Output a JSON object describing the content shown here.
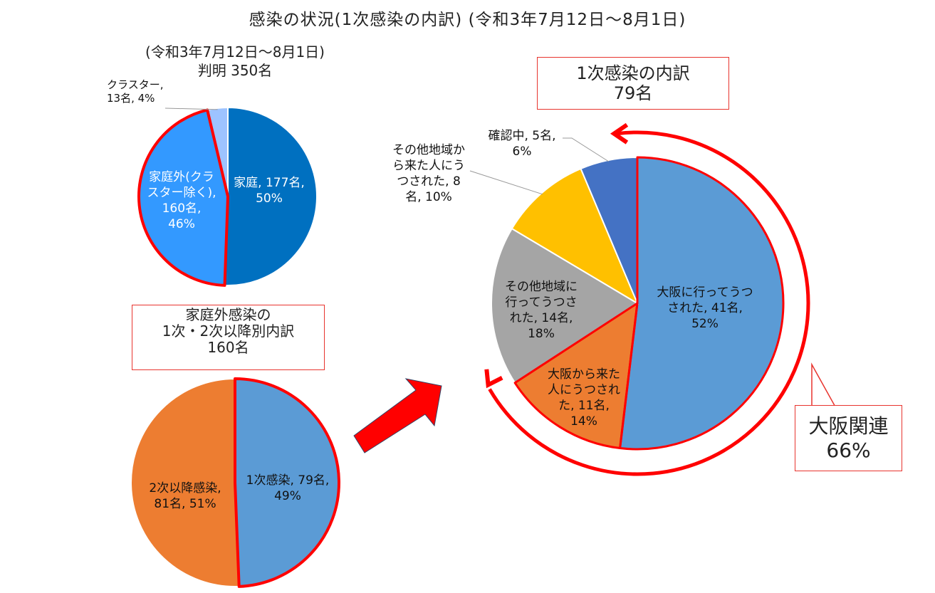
{
  "title": "感染の状況(1次感染の内訳) (令和3年7月12日～8月1日)",
  "chart_data": [
    {
      "type": "pie",
      "subtitle_line1": "(令和3年7月12日～8月1日)",
      "subtitle_line2": "判明 350名",
      "slices": [
        {
          "name": "家庭",
          "value": 177,
          "percent": 50,
          "color": "#0070c0",
          "label": "家庭, 177名,\n50%"
        },
        {
          "name": "家庭外(クラスター除く)",
          "value": 160,
          "percent": 46,
          "color": "#3399ff",
          "label": "家庭外(クラ\nスター除く),\n160名,\n46%"
        },
        {
          "name": "クラスター",
          "value": 13,
          "percent": 4,
          "color": "#9dc3ff",
          "label": "クラスター,\n13名, 4%"
        }
      ],
      "highlighted": "家庭外(クラスター除く)"
    },
    {
      "type": "pie",
      "box_line1": "家庭外感染の",
      "box_line2": "1次・2次以降別内訳",
      "box_line3": "160名",
      "slices": [
        {
          "name": "1次感染",
          "value": 79,
          "percent": 49,
          "color": "#5b9bd5",
          "label": "1次感染, 79名,\n49%"
        },
        {
          "name": "2次以降感染",
          "value": 81,
          "percent": 51,
          "color": "#ed7d31",
          "label": "2次以降感染,\n81名, 51%"
        }
      ],
      "highlighted": "1次感染"
    },
    {
      "type": "pie",
      "box_line1": "1次感染の内訳",
      "box_line2": "79名",
      "slices": [
        {
          "name": "大阪に行ってうつされた",
          "value": 41,
          "percent": 52,
          "color": "#5b9bd5",
          "label": "大阪に行ってうつ\nされた, 41名,\n52%"
        },
        {
          "name": "大阪から来た人にうつされた",
          "value": 11,
          "percent": 14,
          "color": "#ed7d31",
          "label": "大阪から来た\n人にうつされ\nた, 11名,\n14%"
        },
        {
          "name": "その他地域に行ってうつされた",
          "value": 14,
          "percent": 18,
          "color": "#a5a5a5",
          "label": "その他地域に\n行ってうつさ\nれた, 14名,\n18%"
        },
        {
          "name": "その他地域から来た人にうつされた",
          "value": 8,
          "percent": 10,
          "color": "#ffc000",
          "label": "その他地域か\nら来た人にう\nつされた, 8\n名, 10%"
        },
        {
          "name": "確認中",
          "value": 5,
          "percent": 6,
          "color": "#4472c4",
          "label": "確認中, 5名,\n6%"
        }
      ],
      "highlighted": "大阪に行ってうつされた, 大阪から来た人にうつされた",
      "callout_line1": "大阪関連",
      "callout_line2": "66%"
    }
  ]
}
